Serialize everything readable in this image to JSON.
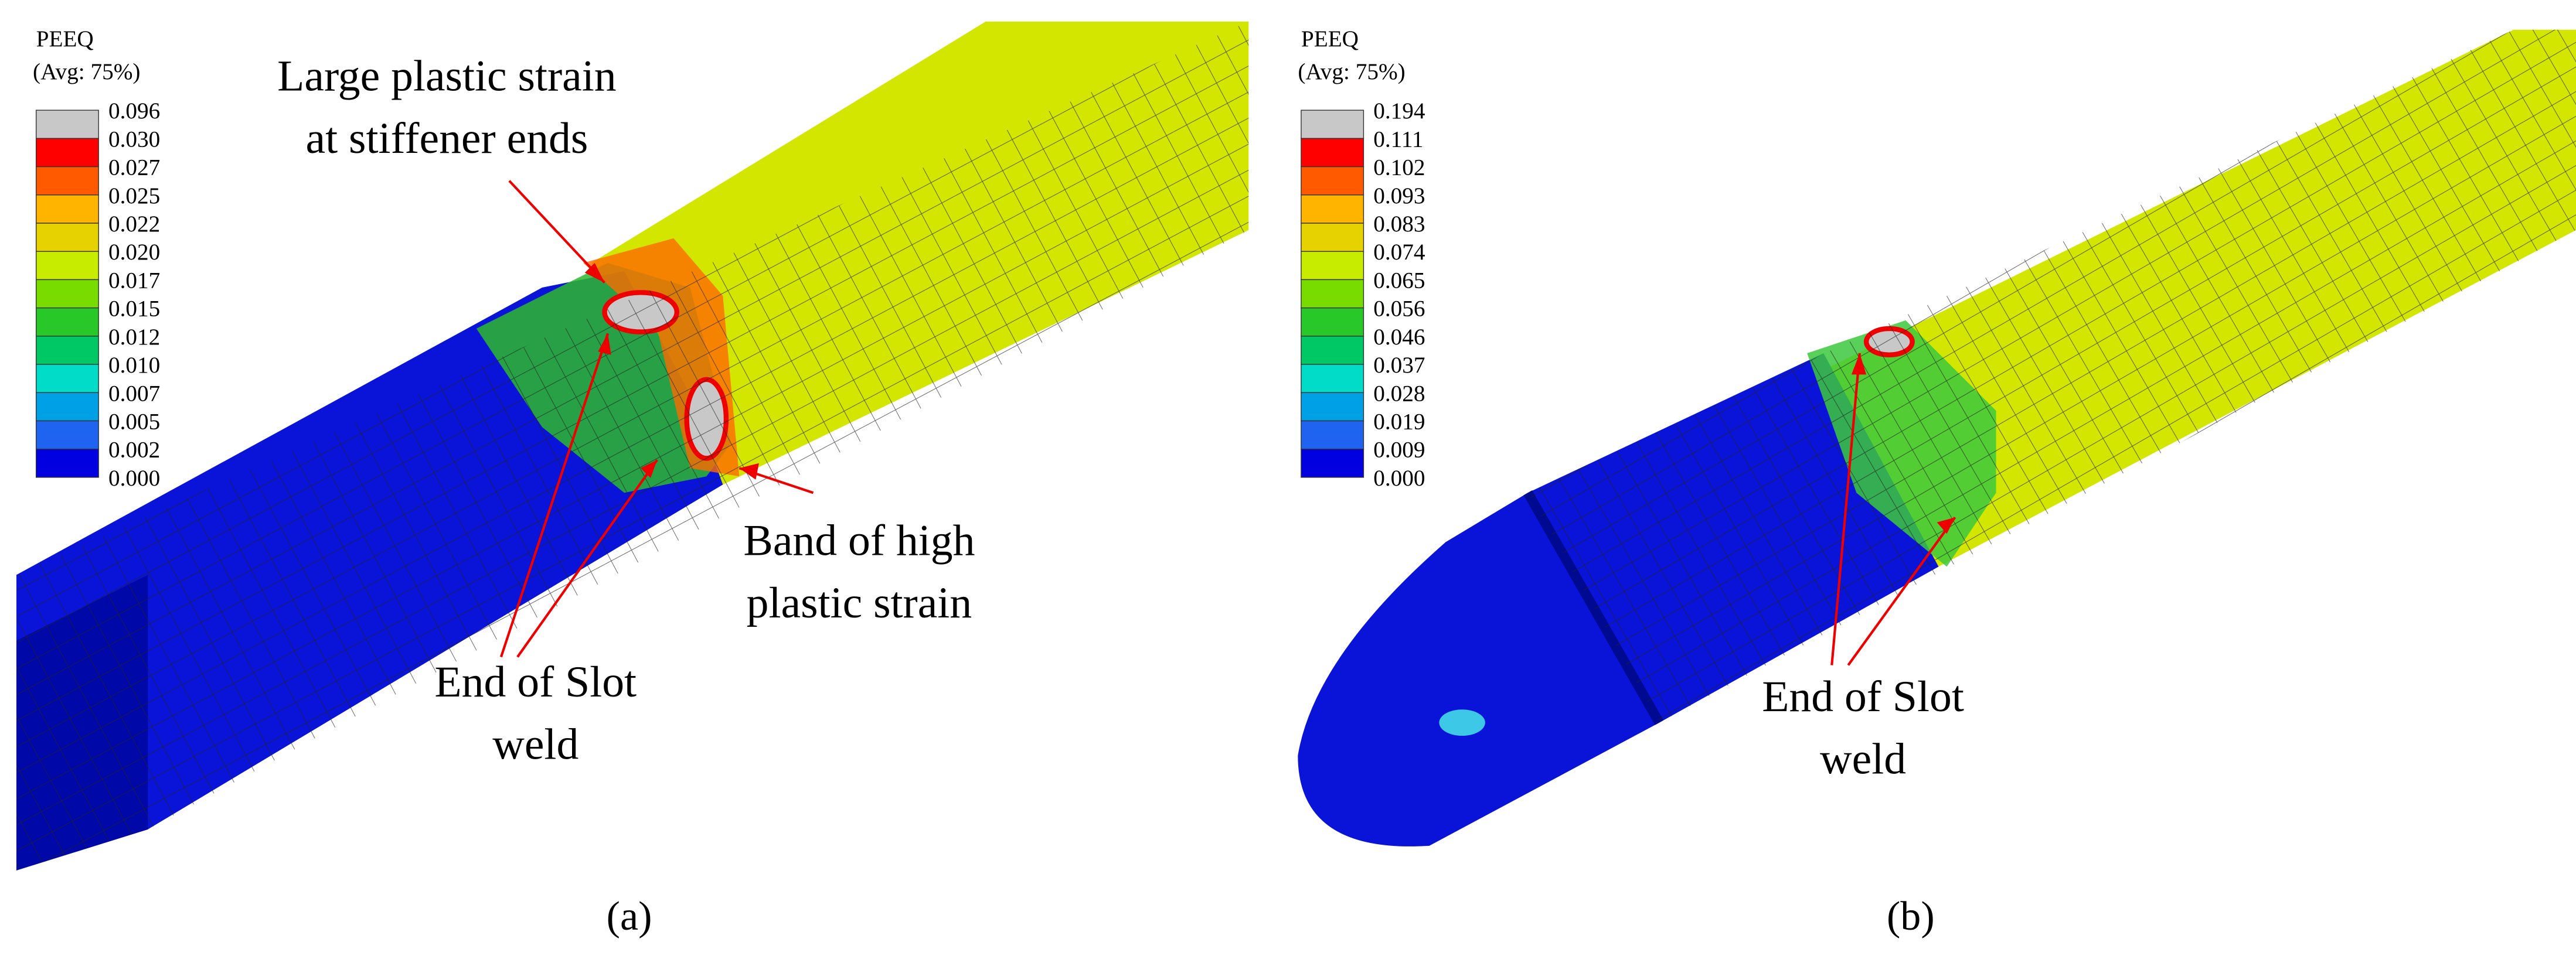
{
  "panels": [
    {
      "legend": {
        "title": "PEEQ",
        "subtitle": "(Avg: 75%)",
        "labels": [
          "0.096",
          "0.030",
          "0.027",
          "0.025",
          "0.022",
          "0.020",
          "0.017",
          "0.015",
          "0.012",
          "0.010",
          "0.007",
          "0.005",
          "0.002",
          "0.000"
        ]
      },
      "annotations": [
        {
          "lines": [
            "Large plastic strain",
            "at stiffener ends"
          ]
        },
        {
          "lines": [
            "Band of high",
            "plastic strain"
          ]
        },
        {
          "lines": [
            "End of Slot",
            "weld"
          ]
        }
      ],
      "caption": "(a)"
    },
    {
      "legend": {
        "title": "PEEQ",
        "subtitle": "(Avg: 75%)",
        "labels": [
          "0.194",
          "0.111",
          "0.102",
          "0.093",
          "0.083",
          "0.074",
          "0.065",
          "0.056",
          "0.046",
          "0.037",
          "0.028",
          "0.019",
          "0.009",
          "0.000"
        ]
      },
      "annotations": [
        {
          "lines": [
            "End of Slot",
            "weld"
          ]
        }
      ],
      "caption": "(b)"
    }
  ]
}
